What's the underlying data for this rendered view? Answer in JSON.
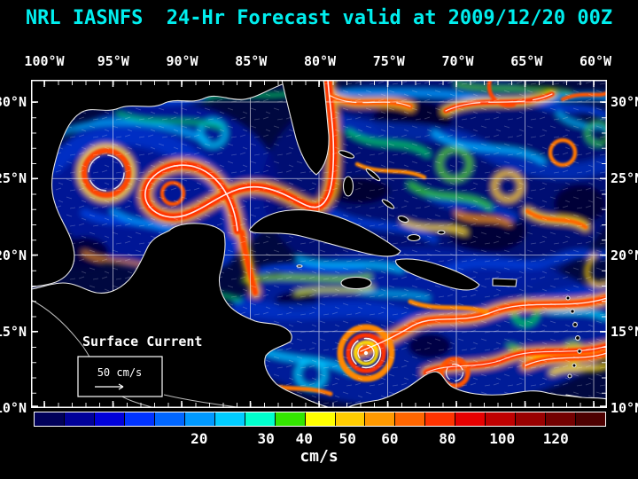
{
  "title": "NRL IASNFS  24-Hr Forecast valid at 2009/12/20 00Z",
  "axes": {
    "lon_ticks": [
      "100°W",
      "95°W",
      "90°W",
      "85°W",
      "80°W",
      "75°W",
      "70°W",
      "65°W",
      "60°W"
    ],
    "lat_ticks": [
      "30°N",
      "25°N",
      "20°N",
      "15°N",
      "10°N"
    ]
  },
  "map": {
    "overlay_title": "Surface Current",
    "scale_label": "50 cm/s"
  },
  "colorbar": {
    "unit": "cm/s",
    "segment_colors": [
      "#000059",
      "#000099",
      "#0000D9",
      "#0033FF",
      "#0066FF",
      "#0099FF",
      "#00CCFF",
      "#00FFCC",
      "#33E600",
      "#FFFF00",
      "#FFCC00",
      "#FF9900",
      "#FF6600",
      "#FF3300",
      "#E60000",
      "#BF0000",
      "#990000",
      "#730000",
      "#4D0000"
    ],
    "ticks": [
      {
        "label": "20",
        "pos": 29
      },
      {
        "label": "30",
        "pos": 40.7
      },
      {
        "label": "40",
        "pos": 47.4
      },
      {
        "label": "50",
        "pos": 55
      },
      {
        "label": "60",
        "pos": 62.4
      },
      {
        "label": "80",
        "pos": 72.5
      },
      {
        "label": "100",
        "pos": 82.1
      },
      {
        "label": "120",
        "pos": 91.5
      }
    ]
  },
  "colors": {
    "title_text": "#00EEEE",
    "axis_text": "#FFFFFF",
    "background": "#000000",
    "coastline": "#E8E8E8"
  }
}
